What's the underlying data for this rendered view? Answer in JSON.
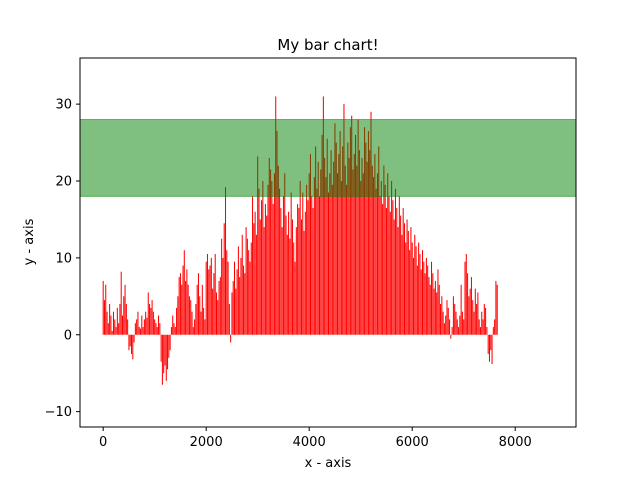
{
  "chart_data": {
    "type": "bar",
    "title": "My bar chart!",
    "xlabel": "x - axis",
    "ylabel": "y - axis",
    "xlim": [
      -450,
      9180
    ],
    "ylim": [
      -12,
      36
    ],
    "xticks": [
      0,
      2000,
      4000,
      6000,
      8000
    ],
    "yticks": [
      -10,
      0,
      10,
      20,
      30
    ],
    "ytick_labels": [
      "−10",
      "0",
      "10",
      "20",
      "30"
    ],
    "bar_color": "#ff0000",
    "band": {
      "ymin": 18,
      "ymax": 28,
      "color": "#008000",
      "alpha": 0.5
    },
    "grid": false,
    "series": [
      {
        "x_start": 0,
        "x_step": 25,
        "values": [
          7.0,
          4.5,
          6.5,
          3.0,
          1.5,
          4.0,
          2.5,
          0.5,
          3.0,
          2.0,
          1.0,
          3.5,
          1.5,
          4.0,
          8.2,
          2.5,
          5.0,
          6.5,
          4.0,
          2.0,
          -2.0,
          -1.5,
          -2.5,
          -3.2,
          -1.0,
          1.5,
          2.0,
          3.0,
          1.0,
          0.8,
          2.5,
          1.0,
          2.0,
          3.0,
          2.2,
          5.5,
          4.0,
          3.5,
          4.5,
          3.0,
          2.0,
          1.5,
          1.0,
          2.5,
          1.5,
          -3.5,
          -6.5,
          -5.0,
          -4.0,
          -6.0,
          -4.5,
          -3.0,
          -2.0,
          1.0,
          2.5,
          1.5,
          1.0,
          3.5,
          5.0,
          7.5,
          8.0,
          6.5,
          9.0,
          11.0,
          7.0,
          8.5,
          6.5,
          5.0,
          4.5,
          3.0,
          1.0,
          2.0,
          4.0,
          6.5,
          8.0,
          5.0,
          3.0,
          6.5,
          3.5,
          2.0,
          9.5,
          10.5,
          8.5,
          9.0,
          10.0,
          6.0,
          8.0,
          10.5,
          5.5,
          4.5,
          7.0,
          7.5,
          12.5,
          10.0,
          14.5,
          19.2,
          11.0,
          9.5,
          4.0,
          -1.0,
          5.5,
          7.0,
          9.5,
          6.0,
          8.5,
          11.5,
          7.5,
          10.0,
          13.0,
          9.0,
          8.0,
          14.0,
          12.5,
          11.0,
          9.5,
          12.0,
          18.0,
          14.5,
          16.0,
          13.0,
          23.2,
          19.0,
          15.0,
          17.5,
          20.0,
          14.0,
          17.0,
          15.5,
          19.5,
          23.0,
          21.5,
          20.0,
          17.0,
          21.0,
          31.0,
          26.5,
          22.0,
          19.0,
          16.5,
          14.0,
          18.0,
          21.0,
          15.5,
          13.0,
          16.0,
          12.5,
          18.5,
          15.0,
          12.0,
          9.5,
          14.0,
          17.0,
          16.5,
          20.0,
          15.0,
          18.5,
          13.5,
          16.0,
          19.5,
          17.5,
          21.0,
          23.5,
          18.0,
          16.5,
          20.5,
          24.5,
          19.0,
          22.5,
          18.0,
          21.5,
          26.0,
          31.0,
          23.0,
          20.5,
          25.5,
          18.5,
          21.0,
          24.0,
          19.5,
          22.5,
          27.5,
          25.0,
          21.0,
          23.5,
          26.5,
          20.0,
          24.5,
          30.0,
          22.0,
          19.5,
          25.0,
          23.0,
          27.0,
          28.5,
          21.5,
          23.5,
          26.0,
          22.0,
          28.0,
          24.0,
          20.0,
          23.0,
          21.0,
          27.0,
          25.0,
          22.5,
          26.5,
          24.0,
          29.0,
          22.0,
          20.5,
          23.5,
          19.0,
          21.0,
          24.5,
          18.0,
          20.0,
          17.0,
          22.0,
          19.5,
          16.5,
          21.0,
          18.0,
          16.0,
          20.0,
          17.5,
          15.0,
          19.0,
          16.5,
          14.0,
          18.0,
          15.5,
          13.0,
          16.5,
          14.5,
          12.0,
          15.0,
          13.5,
          11.0,
          14.0,
          12.0,
          10.0,
          13.0,
          11.5,
          9.0,
          12.0,
          10.5,
          8.5,
          11.0,
          9.5,
          8.0,
          10.0,
          9.0,
          7.5,
          6.5,
          9.5,
          8.0,
          6.0,
          7.0,
          5.5,
          8.5,
          6.5,
          4.0,
          5.0,
          3.0,
          1.5,
          2.5,
          4.5,
          3.5,
          2.0,
          -0.5,
          1.0,
          5.0,
          4.0,
          3.0,
          2.0,
          1.0,
          2.5,
          6.5,
          3.0,
          2.0,
          9.5,
          10.5,
          8.0,
          5.0,
          6.0,
          7.5,
          4.5,
          3.0,
          6.0,
          4.0,
          5.5,
          2.0,
          1.0,
          3.0,
          2.0,
          4.0,
          3.5,
          1.0,
          -2.5,
          -3.5,
          -2.0,
          -3.8,
          1.0,
          2.0,
          7.0,
          6.5
        ]
      }
    ]
  }
}
